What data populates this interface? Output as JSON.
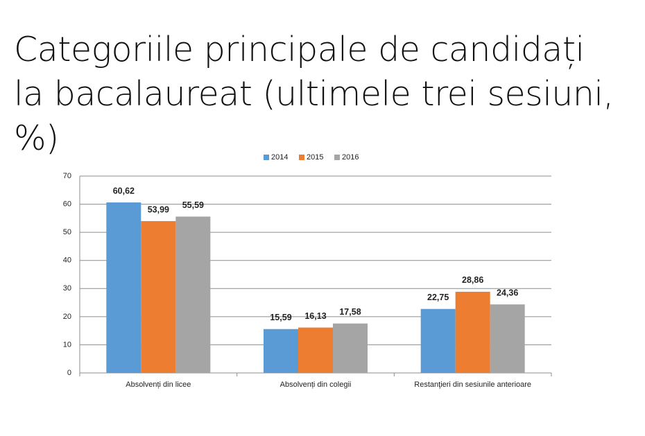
{
  "chart_data": {
    "type": "bar",
    "title": "Categoriile principale de candidați la bacalaureat (ultimele trei sesiuni, %)",
    "categories": [
      "Absolvenți din licee",
      "Absolvenți din colegii",
      "Restanţieri din sesiunile anterioare"
    ],
    "series": [
      {
        "name": "2014",
        "color": "#5b9bd5",
        "values": [
          60.62,
          15.59,
          22.75
        ],
        "value_labels": [
          "60,62",
          "15,59",
          "22,75"
        ]
      },
      {
        "name": "2015",
        "color": "#ed7d31",
        "values": [
          53.99,
          16.13,
          28.86
        ],
        "value_labels": [
          "53,99",
          "16,13",
          "28,86"
        ]
      },
      {
        "name": "2016",
        "color": "#a5a5a5",
        "values": [
          55.59,
          17.58,
          24.36
        ],
        "value_labels": [
          "55,59",
          "17,58",
          "24,36"
        ]
      }
    ],
    "ylim": [
      0,
      70
    ],
    "yticks": [
      0,
      10,
      20,
      30,
      40,
      50,
      60,
      70
    ],
    "grid": true,
    "legend": "top"
  }
}
